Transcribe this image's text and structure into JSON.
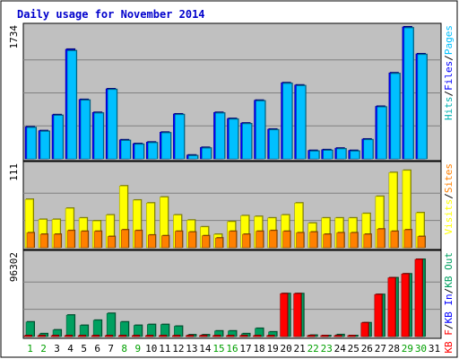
{
  "title": "Daily usage for November 2014",
  "colors": {
    "background": "#ffffff",
    "frame": "#000000",
    "panel": "#c0c0c0",
    "title": "#0000cc",
    "day_weekday": "#000000",
    "day_weekend": "#00a000",
    "hits": "#00b0b0",
    "files": "#0000ff",
    "pages": "#00c0ff",
    "visits": "#ffff00",
    "sites": "#ff8000",
    "kb_out": "#00a060",
    "kb_in": "#0000ff",
    "kb_f": "#ff0000"
  },
  "chart_data": [
    {
      "type": "bar",
      "panel": "hits",
      "y_label": "1734",
      "ylim": [
        0,
        1734
      ],
      "legend": [
        {
          "text": "Hits",
          "color": "#00b0b0"
        },
        {
          "text": "Files",
          "color": "#0000ff"
        },
        {
          "text": "Pages",
          "color": "#00c0ff"
        }
      ],
      "legend_separator": "/",
      "categories": [
        "1",
        "2",
        "3",
        "4",
        "5",
        "6",
        "7",
        "8",
        "9",
        "10",
        "11",
        "12",
        "13",
        "14",
        "15",
        "16",
        "17",
        "18",
        "19",
        "20",
        "21",
        "22",
        "23",
        "24",
        "25",
        "26",
        "27",
        "28",
        "29",
        "30",
        "31"
      ],
      "series": [
        {
          "name": "Files",
          "color": "#0000ff",
          "values": [
            420,
            370,
            580,
            1440,
            780,
            610,
            920,
            250,
            200,
            220,
            350,
            590,
            50,
            150,
            610,
            530,
            470,
            770,
            390,
            1000,
            970,
            110,
            120,
            140,
            110,
            260,
            690,
            1130,
            1734,
            1380,
            null
          ]
        },
        {
          "name": "Pages",
          "color": "#00c0ff",
          "values": [
            410,
            360,
            570,
            1420,
            770,
            600,
            910,
            240,
            190,
            210,
            340,
            580,
            40,
            140,
            600,
            520,
            460,
            760,
            380,
            990,
            960,
            100,
            110,
            130,
            100,
            250,
            680,
            1120,
            1720,
            1370,
            null
          ]
        }
      ]
    },
    {
      "type": "bar",
      "panel": "visits",
      "y_label": "111",
      "ylim": [
        0,
        111
      ],
      "legend": [
        {
          "text": "Visits",
          "color": "#ffff00"
        },
        {
          "text": "Sites",
          "color": "#ff8000"
        }
      ],
      "legend_separator": "/",
      "categories": [
        "1",
        "2",
        "3",
        "4",
        "5",
        "6",
        "7",
        "8",
        "9",
        "10",
        "11",
        "12",
        "13",
        "14",
        "15",
        "16",
        "17",
        "18",
        "19",
        "20",
        "21",
        "22",
        "23",
        "24",
        "25",
        "26",
        "27",
        "28",
        "29",
        "30",
        "31"
      ],
      "series": [
        {
          "name": "Visits",
          "color": "#ffff00",
          "values": [
            65,
            38,
            38,
            53,
            40,
            36,
            44,
            83,
            64,
            60,
            68,
            44,
            37,
            28,
            18,
            35,
            43,
            42,
            40,
            44,
            60,
            33,
            40,
            40,
            40,
            46,
            69,
            101,
            104,
            47,
            null
          ]
        },
        {
          "name": "Sites",
          "color": "#ff8000",
          "values": [
            20,
            18,
            18,
            23,
            22,
            22,
            15,
            24,
            23,
            17,
            16,
            22,
            21,
            16,
            13,
            22,
            18,
            22,
            23,
            22,
            20,
            21,
            18,
            20,
            20,
            18,
            25,
            22,
            24,
            15,
            null
          ]
        }
      ]
    },
    {
      "type": "bar",
      "panel": "kbytes",
      "y_label": "96302",
      "ylim": [
        0,
        96302
      ],
      "legend": [
        {
          "text": "KB F",
          "color": "#ff0000"
        },
        {
          "text": "KB In",
          "color": "#0000ff"
        },
        {
          "text": "KB Out",
          "color": "#00a060"
        }
      ],
      "legend_separator": "/",
      "categories": [
        "1",
        "2",
        "3",
        "4",
        "5",
        "6",
        "7",
        "8",
        "9",
        "10",
        "11",
        "12",
        "13",
        "14",
        "15",
        "16",
        "17",
        "18",
        "19",
        "20",
        "21",
        "22",
        "23",
        "24",
        "25",
        "26",
        "27",
        "28",
        "29",
        "30",
        "31"
      ],
      "series": [
        {
          "name": "KB Out",
          "color": "#00a060",
          "values": [
            17000,
            3300,
            7700,
            25000,
            13000,
            19000,
            27000,
            17000,
            13000,
            14000,
            14000,
            12000,
            2000,
            2000,
            6500,
            6500,
            3300,
            9500,
            5400,
            50000,
            50000,
            1500,
            1000,
            2200,
            1000,
            16000,
            49000,
            68500,
            73000,
            90000,
            null
          ]
        },
        {
          "name": "KB F",
          "color": "#ff0000",
          "values": [
            500,
            500,
            500,
            500,
            500,
            500,
            500,
            500,
            500,
            500,
            500,
            500,
            500,
            500,
            500,
            500,
            500,
            500,
            500,
            50000,
            50000,
            500,
            500,
            500,
            500,
            16000,
            49000,
            68500,
            73000,
            90000,
            null
          ]
        }
      ]
    }
  ],
  "x_axis": {
    "days": [
      "1",
      "2",
      "3",
      "4",
      "5",
      "6",
      "7",
      "8",
      "9",
      "10",
      "11",
      "12",
      "13",
      "14",
      "15",
      "16",
      "17",
      "18",
      "19",
      "20",
      "21",
      "22",
      "23",
      "24",
      "25",
      "26",
      "27",
      "28",
      "29",
      "30",
      "31"
    ],
    "weekend_days": [
      "1",
      "2",
      "8",
      "9",
      "15",
      "16",
      "22",
      "23",
      "29",
      "30"
    ]
  }
}
